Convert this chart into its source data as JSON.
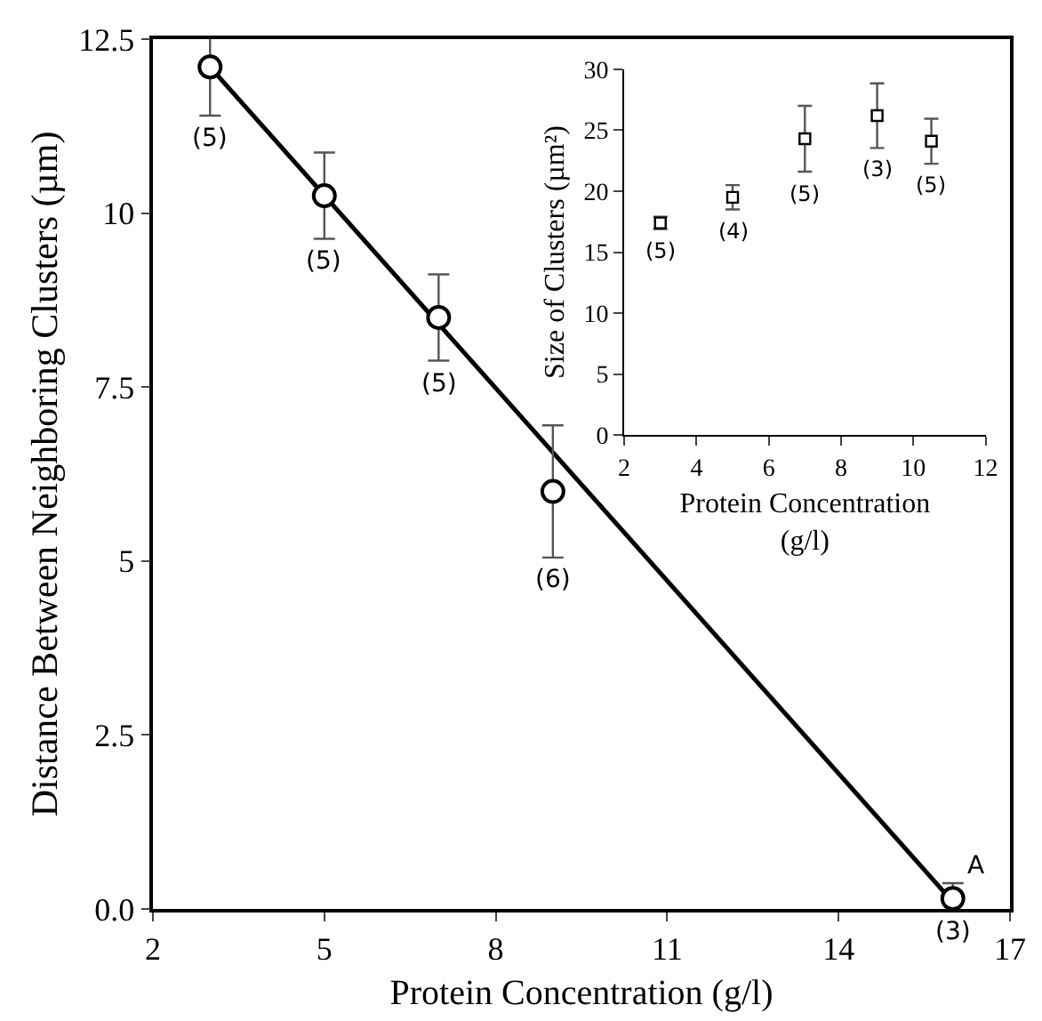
{
  "chart_data": [
    {
      "type": "scatter",
      "xlabel": "Protein Concentration (g/l)",
      "ylabel": "Distance Between Neighboring Clusters (µm)",
      "xlim": [
        2,
        17
      ],
      "xticks": [
        2,
        5,
        8,
        11,
        14,
        17
      ],
      "ylim": [
        0,
        12.5
      ],
      "yticks": [
        {
          "value": 0,
          "label": "0.0"
        },
        2.5,
        5,
        7.5,
        10,
        12.5
      ],
      "series": [
        {
          "type": "line",
          "x": [
            3,
            16
          ],
          "values": [
            12.1,
            0.1
          ],
          "color": "#000000",
          "line_style": "solid"
        },
        {
          "x": [
            3,
            5,
            7,
            9,
            16
          ],
          "values": [
            12.1,
            10.25,
            8.5,
            6.0,
            0.15
          ],
          "errors": [
            0.7,
            0.62,
            0.62,
            0.95,
            0.22
          ],
          "color": "#000000",
          "marker": "circle"
        }
      ],
      "annotations": [
        {
          "text": "(5)",
          "x": 3,
          "y": 11.4
        },
        {
          "text": "(5)",
          "x": 5,
          "y": 9.63
        },
        {
          "text": "(5)",
          "x": 7,
          "y": 7.88
        },
        {
          "text": "(6)",
          "x": 9,
          "y": 5.05
        },
        {
          "text": "(3)",
          "x": 16,
          "y": 0
        },
        {
          "text": "A",
          "x": 16,
          "y": 0.15
        }
      ]
    },
    {
      "type": "scatter",
      "xlabel": "Protein Concentration\n(g/l)",
      "ylabel": "Size of Clusters (µm²)",
      "xlim": [
        2,
        12
      ],
      "xticks": [
        2,
        4,
        6,
        8,
        10,
        12
      ],
      "ylim": [
        0,
        30
      ],
      "yticks": [
        0,
        5,
        10,
        15,
        20,
        25,
        30
      ],
      "series": [
        {
          "x": [
            3,
            5,
            7,
            9,
            10.5
          ],
          "values": [
            17.4,
            19.5,
            24.3,
            26.2,
            24.1
          ],
          "errors": [
            0.5,
            1.0,
            2.7,
            2.65,
            1.85
          ],
          "color": "#000000",
          "marker": "square"
        }
      ],
      "annotations": [
        {
          "text": "(5)",
          "x": 3,
          "y": 16.9
        },
        {
          "text": "(4)",
          "x": 5,
          "y": 18.5
        },
        {
          "text": "(5)",
          "x": 7,
          "y": 21.6
        },
        {
          "text": "(3)",
          "x": 9,
          "y": 23.55
        },
        {
          "text": "(5)",
          "x": 10.5,
          "y": 22.25
        }
      ]
    }
  ]
}
